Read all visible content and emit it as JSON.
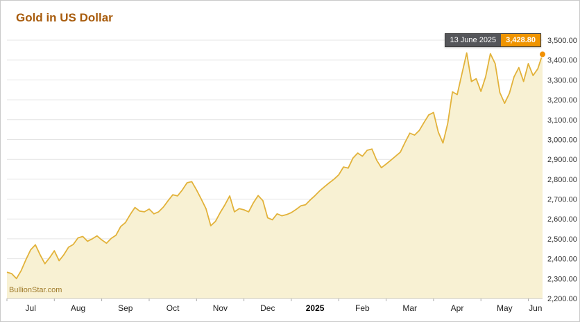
{
  "header": {
    "title": "Gold in US Dollar"
  },
  "tooltip": {
    "date": "13 June 2025",
    "value": "3,428.80"
  },
  "watermark": "BullionStar.com",
  "colors": {
    "title": "#a85c0d",
    "line": "#e2b23a",
    "area_fill": "#f8f1d3",
    "marker": "#f29104",
    "tooltip_date_bg": "#55565a",
    "tooltip_value_bg": "#ef9400",
    "grid": "#e4e4e4",
    "axis": "#aaaaaa"
  },
  "chart_data": {
    "type": "area",
    "title": "Gold in US Dollar",
    "legend": false,
    "grid": true,
    "ylim": [
      2200,
      3500
    ],
    "y_ticks": [
      {
        "value": 3500,
        "label": "3,500.00"
      },
      {
        "value": 3400,
        "label": "3,400.00"
      },
      {
        "value": 3300,
        "label": "3,300.00"
      },
      {
        "value": 3200,
        "label": "3,200.00"
      },
      {
        "value": 3100,
        "label": "3,100.00"
      },
      {
        "value": 3000,
        "label": "3,000.00"
      },
      {
        "value": 2900,
        "label": "2,900.00"
      },
      {
        "value": 2800,
        "label": "2,800.00"
      },
      {
        "value": 2700,
        "label": "2,700.00"
      },
      {
        "value": 2600,
        "label": "2,600.00"
      },
      {
        "value": 2500,
        "label": "2,500.00"
      },
      {
        "value": 2400,
        "label": "2,400.00"
      },
      {
        "value": 2300,
        "label": "2,300.00"
      },
      {
        "value": 2200,
        "label": "2,200.00"
      }
    ],
    "x_labels": [
      "Jul",
      "Aug",
      "Sep",
      "Oct",
      "Nov",
      "Dec",
      "2025",
      "Feb",
      "Mar",
      "Apr",
      "May",
      "Jun"
    ],
    "bold_x_label": "2025",
    "points_per_month": 10,
    "prices": [
      2332,
      2325,
      2300,
      2340,
      2395,
      2445,
      2470,
      2420,
      2375,
      2405,
      2440,
      2390,
      2420,
      2458,
      2472,
      2505,
      2512,
      2488,
      2500,
      2515,
      2495,
      2478,
      2502,
      2518,
      2562,
      2582,
      2622,
      2658,
      2640,
      2636,
      2650,
      2626,
      2636,
      2660,
      2692,
      2722,
      2716,
      2746,
      2782,
      2788,
      2746,
      2700,
      2652,
      2566,
      2588,
      2632,
      2672,
      2716,
      2636,
      2652,
      2646,
      2636,
      2682,
      2718,
      2692,
      2606,
      2596,
      2626,
      2616,
      2622,
      2632,
      2648,
      2666,
      2672,
      2696,
      2718,
      2742,
      2762,
      2782,
      2800,
      2822,
      2862,
      2856,
      2906,
      2932,
      2916,
      2946,
      2952,
      2896,
      2858,
      2876,
      2896,
      2916,
      2936,
      2986,
      3032,
      3022,
      3046,
      3086,
      3124,
      3136,
      3038,
      2982,
      3082,
      3240,
      3226,
      3332,
      3436,
      3292,
      3306,
      3242,
      3316,
      3432,
      3382,
      3236,
      3182,
      3232,
      3316,
      3362,
      3292,
      3382,
      3322,
      3356,
      3428.8
    ],
    "last_point": {
      "date": "13 June 2025",
      "price": 3428.8
    }
  }
}
